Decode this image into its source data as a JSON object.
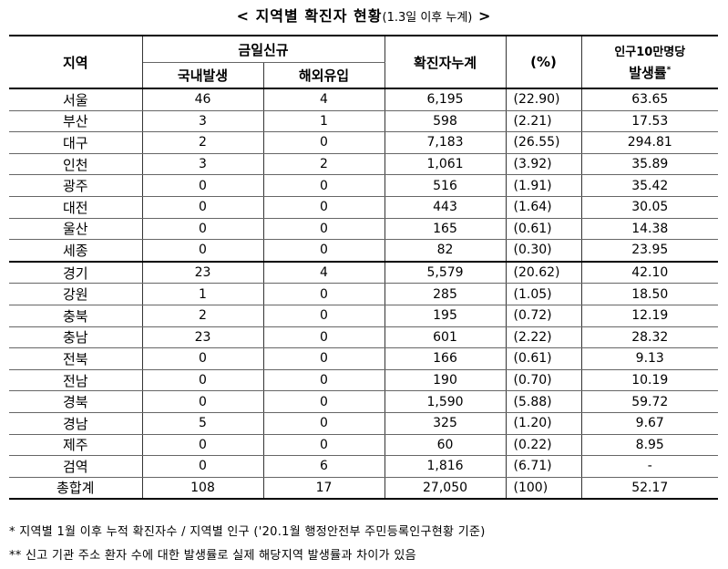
{
  "title": {
    "main": "< 지역별 확진자 현황",
    "sub": "(1.3일 이후 누계)",
    "end": " >"
  },
  "headers": {
    "region": "지역",
    "new_today": "금일신규",
    "domestic": "국내발생",
    "overseas": "해외유입",
    "cumulative": "확진자누계",
    "percent": "(%)",
    "rate_line1": "인구10만명당",
    "rate_line2": "발생률",
    "rate_mark": "*"
  },
  "rows": [
    {
      "region": "서울",
      "domestic": "46",
      "overseas": "4",
      "cumulative": "6,195",
      "percent": "(22.90)",
      "rate": "63.65"
    },
    {
      "region": "부산",
      "domestic": "3",
      "overseas": "1",
      "cumulative": "598",
      "percent": "(2.21)",
      "rate": "17.53"
    },
    {
      "region": "대구",
      "domestic": "2",
      "overseas": "0",
      "cumulative": "7,183",
      "percent": "(26.55)",
      "rate": "294.81"
    },
    {
      "region": "인천",
      "domestic": "3",
      "overseas": "2",
      "cumulative": "1,061",
      "percent": "(3.92)",
      "rate": "35.89"
    },
    {
      "region": "광주",
      "domestic": "0",
      "overseas": "0",
      "cumulative": "516",
      "percent": "(1.91)",
      "rate": "35.42"
    },
    {
      "region": "대전",
      "domestic": "0",
      "overseas": "0",
      "cumulative": "443",
      "percent": "(1.64)",
      "rate": "30.05"
    },
    {
      "region": "울산",
      "domestic": "0",
      "overseas": "0",
      "cumulative": "165",
      "percent": "(0.61)",
      "rate": "14.38"
    },
    {
      "region": "세종",
      "domestic": "0",
      "overseas": "0",
      "cumulative": "82",
      "percent": "(0.30)",
      "rate": "23.95"
    },
    {
      "region": "경기",
      "domestic": "23",
      "overseas": "4",
      "cumulative": "5,579",
      "percent": "(20.62)",
      "rate": "42.10"
    },
    {
      "region": "강원",
      "domestic": "1",
      "overseas": "0",
      "cumulative": "285",
      "percent": "(1.05)",
      "rate": "18.50"
    },
    {
      "region": "충북",
      "domestic": "2",
      "overseas": "0",
      "cumulative": "195",
      "percent": "(0.72)",
      "rate": "12.19"
    },
    {
      "region": "충남",
      "domestic": "23",
      "overseas": "0",
      "cumulative": "601",
      "percent": "(2.22)",
      "rate": "28.32"
    },
    {
      "region": "전북",
      "domestic": "0",
      "overseas": "0",
      "cumulative": "166",
      "percent": "(0.61)",
      "rate": "9.13"
    },
    {
      "region": "전남",
      "domestic": "0",
      "overseas": "0",
      "cumulative": "190",
      "percent": "(0.70)",
      "rate": "10.19"
    },
    {
      "region": "경북",
      "domestic": "0",
      "overseas": "0",
      "cumulative": "1,590",
      "percent": "(5.88)",
      "rate": "59.72"
    },
    {
      "region": "경남",
      "domestic": "5",
      "overseas": "0",
      "cumulative": "325",
      "percent": "(1.20)",
      "rate": "9.67"
    },
    {
      "region": "제주",
      "domestic": "0",
      "overseas": "0",
      "cumulative": "60",
      "percent": "(0.22)",
      "rate": "8.95"
    },
    {
      "region": "검역",
      "domestic": "0",
      "overseas": "6",
      "cumulative": "1,816",
      "percent": "(6.71)",
      "rate": "-"
    }
  ],
  "total": {
    "region": "총합계",
    "domestic": "108",
    "overseas": "17",
    "cumulative": "27,050",
    "percent": "(100)",
    "rate": "52.17"
  },
  "notes": {
    "note1": " * 지역별 1월 이후 누적 확진자수 / 지역별 인구 ('20.1월 행정안전부 주민등록인구현황 기준)",
    "note2": "** 신고 기관 주소 환자 수에 대한 발생률로 실제 해당지역 발생률과 차이가 있음"
  }
}
